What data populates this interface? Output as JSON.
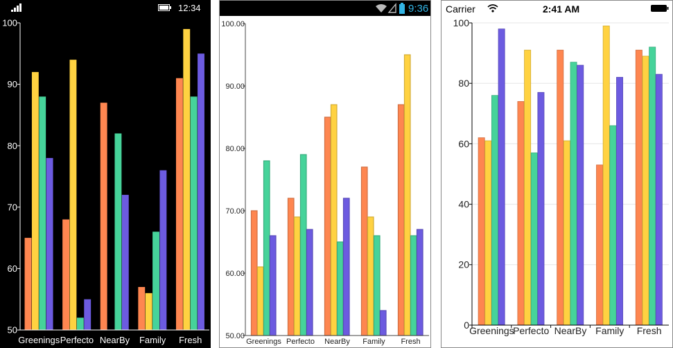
{
  "palette": [
    "#fe8650",
    "#ffd241",
    "#46d39a",
    "#6c5be0"
  ],
  "phones": [
    {
      "id": "wp",
      "status": {
        "time": "12:34",
        "icons": [
          "signal-bars-icon",
          "battery-icon"
        ]
      },
      "chart_data": {
        "type": "bar",
        "categories": [
          "Greenings",
          "Perfecto",
          "NearBy",
          "Family",
          "Fresh"
        ],
        "series": [
          {
            "values": [
              65,
              68,
              87,
              57,
              91
            ]
          },
          {
            "values": [
              92,
              94,
              48,
              56,
              99
            ]
          },
          {
            "values": [
              88,
              52,
              82,
              66,
              88
            ]
          },
          {
            "values": [
              78,
              55,
              72,
              76,
              95
            ]
          }
        ],
        "ylim": [
          50,
          100
        ],
        "yticks": [
          "50",
          "60",
          "70",
          "80",
          "90",
          "100"
        ],
        "grid": false,
        "legend": "none"
      }
    },
    {
      "id": "android",
      "status": {
        "time": "9:36",
        "icons": [
          "wifi-icon",
          "no-sim-icon",
          "battery-icon"
        ]
      },
      "chart_data": {
        "type": "bar",
        "categories": [
          "Greenings",
          "Perfecto",
          "NearBy",
          "Family",
          "Fresh"
        ],
        "series": [
          {
            "values": [
              70,
              72,
              85,
              77,
              87
            ]
          },
          {
            "values": [
              61,
              69,
              87,
              69,
              95
            ]
          },
          {
            "values": [
              78,
              79,
              65,
              66,
              66
            ]
          },
          {
            "values": [
              66,
              67,
              72,
              54,
              67
            ]
          }
        ],
        "ylim": [
          50,
          100
        ],
        "yticks": [
          "50.00",
          "60.00",
          "70.00",
          "80.00",
          "90.00",
          "100.00"
        ],
        "grid": false,
        "legend": "none"
      }
    },
    {
      "id": "ios",
      "status": {
        "carrier": "Carrier",
        "time": "2:41 AM",
        "icons": [
          "wifi-icon",
          "battery-icon"
        ]
      },
      "chart_data": {
        "type": "bar",
        "categories": [
          "Greenings",
          "Perfecto",
          "NearBy",
          "Family",
          "Fresh"
        ],
        "series": [
          {
            "values": [
              62,
              74,
              91,
              53,
              91
            ]
          },
          {
            "values": [
              61,
              91,
              61,
              99,
              89
            ]
          },
          {
            "values": [
              76,
              57,
              87,
              66,
              92
            ]
          },
          {
            "values": [
              98,
              77,
              86,
              82,
              83
            ]
          }
        ],
        "ylim": [
          0,
          100
        ],
        "yticks": [
          "0",
          "20",
          "40",
          "60",
          "80",
          "100"
        ],
        "grid": true,
        "legend": "none"
      }
    }
  ]
}
